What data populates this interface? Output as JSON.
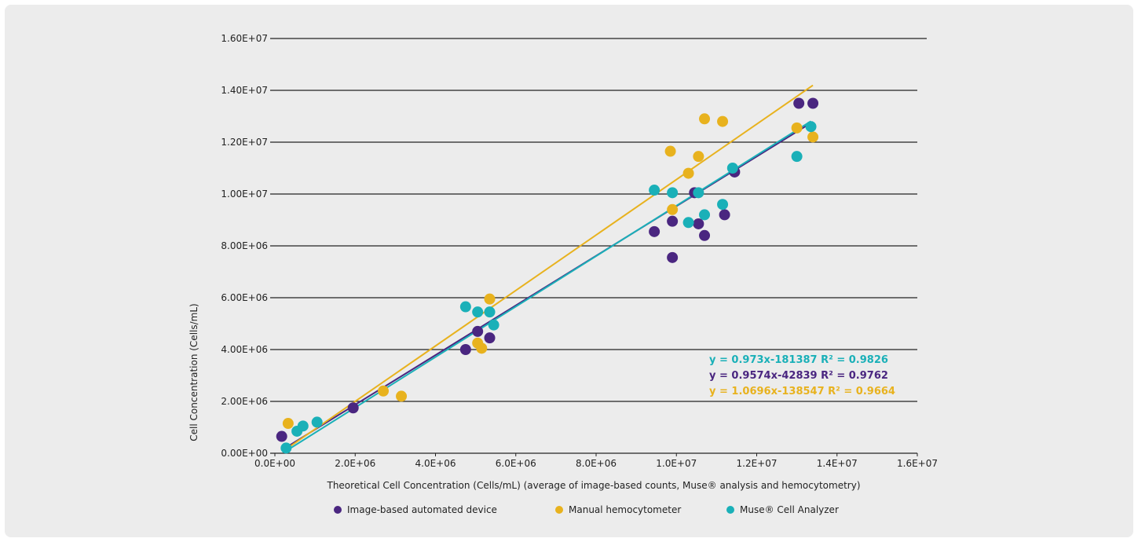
{
  "chart_data": {
    "type": "scatter",
    "xlabel": "Theoretical Cell Concentration (Cells/mL) (average of image-based counts, Muse® analysis and hemocytometry)",
    "ylabel": "Cell Concentration (Cells/mL)",
    "xlim": [
      0,
      16000000
    ],
    "ylim": [
      0,
      16000000
    ],
    "x_ticks": [
      0,
      2000000,
      4000000,
      6000000,
      8000000,
      10000000,
      12000000,
      14000000,
      16000000
    ],
    "x_tick_labels": [
      "0.0E+00",
      "2.0E+06",
      "4.0E+06",
      "6.0E+06",
      "8.0E+06",
      "1.0E+07",
      "1.2E+07",
      "1.4E+07",
      "1.6E+07"
    ],
    "y_ticks": [
      0,
      2000000,
      4000000,
      6000000,
      8000000,
      10000000,
      12000000,
      14000000,
      16000000
    ],
    "y_tick_labels": [
      "0.00E+00",
      "2.00E+06",
      "4.00E+06",
      "6.00E+06",
      "8.00E+06",
      "1.00E+07",
      "1.20E+07",
      "1.40E+07",
      "1.60E+07"
    ],
    "grid": "horizontal",
    "legend_position": "bottom",
    "series": [
      {
        "name": "Image-based automated device",
        "color": "#4a2680",
        "trend": {
          "slope": 0.9574,
          "intercept": -42839
        },
        "equation": "y = 0.9574x-42839 R² = 0.9762",
        "points": [
          [
            170000,
            650000
          ],
          [
            1950000,
            1750000
          ],
          [
            4750000,
            4000000
          ],
          [
            5050000,
            4700000
          ],
          [
            5350000,
            4450000
          ],
          [
            9450000,
            8550000
          ],
          [
            9900000,
            8950000
          ],
          [
            9900000,
            7550000
          ],
          [
            10450000,
            10050000
          ],
          [
            10550000,
            8850000
          ],
          [
            10700000,
            8400000
          ],
          [
            11200000,
            9200000
          ],
          [
            11450000,
            10850000
          ],
          [
            13050000,
            13500000
          ],
          [
            13400000,
            13500000
          ]
        ]
      },
      {
        "name": "Manual hemocytometer",
        "color": "#e8b21e",
        "trend": {
          "slope": 1.0696,
          "intercept": -138547
        },
        "equation": "y = 1.0696x-138547 R² = 0.9664",
        "points": [
          [
            330000,
            1150000
          ],
          [
            2700000,
            2400000
          ],
          [
            3150000,
            2200000
          ],
          [
            5050000,
            4250000
          ],
          [
            5150000,
            4050000
          ],
          [
            5350000,
            5950000
          ],
          [
            9850000,
            11650000
          ],
          [
            9900000,
            9400000
          ],
          [
            10300000,
            10800000
          ],
          [
            10550000,
            11450000
          ],
          [
            10700000,
            12900000
          ],
          [
            11150000,
            12800000
          ],
          [
            13000000,
            12550000
          ],
          [
            13400000,
            12200000
          ]
        ]
      },
      {
        "name": "Muse® Cell Analyzer",
        "color": "#1ab0b8",
        "trend": {
          "slope": 0.973,
          "intercept": -181387
        },
        "equation": "y = 0.973x-181387 R² = 0.9826",
        "points": [
          [
            280000,
            200000
          ],
          [
            550000,
            850000
          ],
          [
            700000,
            1050000
          ],
          [
            1050000,
            1200000
          ],
          [
            4750000,
            5650000
          ],
          [
            5050000,
            5450000
          ],
          [
            5350000,
            5450000
          ],
          [
            5450000,
            4950000
          ],
          [
            9450000,
            10150000
          ],
          [
            9900000,
            10050000
          ],
          [
            10300000,
            8900000
          ],
          [
            10550000,
            10050000
          ],
          [
            10700000,
            9200000
          ],
          [
            11150000,
            9600000
          ],
          [
            11400000,
            11000000
          ],
          [
            13000000,
            11450000
          ],
          [
            13350000,
            12600000
          ]
        ]
      }
    ]
  }
}
